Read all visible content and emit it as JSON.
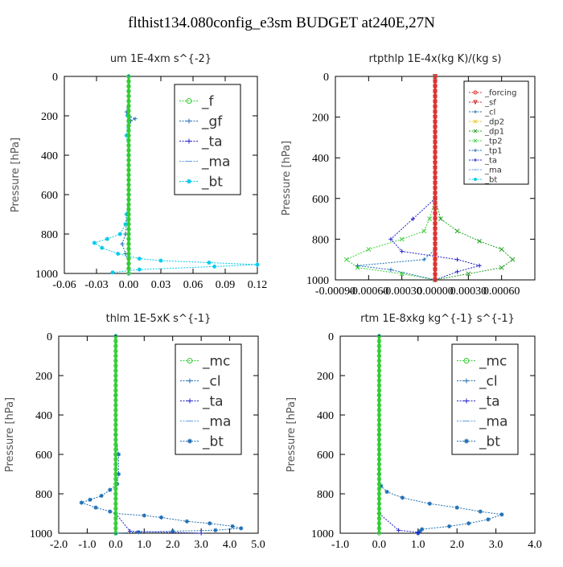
{
  "figure": {
    "title": "flthist134.080config_e3sm  BUDGET at240E,27N"
  },
  "chart_data": [
    {
      "type": "line",
      "title": "um  1E-4xm s^{-2}",
      "ylabel": "Pressure [hPa]",
      "xlim": [
        -0.06,
        0.12
      ],
      "ylim": [
        1000,
        0
      ],
      "xticks": [
        "-0.06",
        "-0.03",
        "0.00",
        "0.03",
        "0.06",
        "0.09",
        "0.12"
      ],
      "xtick_values": [
        -0.06,
        -0.03,
        0.0,
        0.03,
        0.06,
        0.09,
        0.12
      ],
      "yticks": [
        "0",
        "200",
        "400",
        "600",
        "800",
        "1000"
      ],
      "ytick_values": [
        0,
        200,
        400,
        600,
        800,
        1000
      ],
      "legend": {
        "position": "top-right",
        "size": "large",
        "entries": [
          "_f",
          "_gf",
          "_ta",
          "_ma",
          "_bt"
        ]
      },
      "series": [
        {
          "name": "_gf",
          "color": "#1f6fb4",
          "marker": "+",
          "points": [
            [
              0,
              0
            ],
            [
              0,
              100
            ],
            [
              -0.002,
              180
            ],
            [
              -0.001,
              195
            ],
            [
              0.001,
              205
            ],
            [
              0.006,
              215
            ],
            [
              0.002,
              225
            ],
            [
              0,
              300
            ],
            [
              0,
              400
            ],
            [
              0,
              600
            ],
            [
              -0.003,
              800
            ],
            [
              -0.006,
              850
            ],
            [
              -0.003,
              900
            ],
            [
              0,
              950
            ],
            [
              0,
              1000
            ]
          ]
        },
        {
          "name": "_bt",
          "color": "#00c8e8",
          "marker": "*",
          "points": [
            [
              0,
              0
            ],
            [
              0,
              100
            ],
            [
              -0.001,
              200
            ],
            [
              -0.002,
              300
            ],
            [
              0,
              400
            ],
            [
              0,
              500
            ],
            [
              0,
              600
            ],
            [
              -0.002,
              700
            ],
            [
              -0.003,
              750
            ],
            [
              -0.008,
              800
            ],
            [
              -0.02,
              825
            ],
            [
              -0.032,
              845
            ],
            [
              -0.025,
              870
            ],
            [
              -0.01,
              900
            ],
            [
              0.01,
              925
            ],
            [
              0.03,
              935
            ],
            [
              0.075,
              945
            ],
            [
              0.12,
              955
            ],
            [
              0.08,
              965
            ],
            [
              0.01,
              980
            ],
            [
              -0.015,
              995
            ]
          ]
        },
        {
          "name": "_ta",
          "color": "#2020c8",
          "marker": "+",
          "points": [
            [
              0,
              0
            ],
            [
              0,
              200
            ],
            [
              0,
              400
            ],
            [
              0,
              600
            ],
            [
              0,
              800
            ],
            [
              0,
              900
            ],
            [
              0,
              1000
            ]
          ]
        },
        {
          "name": "_ma",
          "color": "#60a0e0",
          "marker": "-",
          "points": [
            [
              0,
              0
            ],
            [
              0,
              500
            ],
            [
              0,
              1000
            ]
          ]
        },
        {
          "name": "_f",
          "color": "#32cd32",
          "marker": "o",
          "points": [
            [
              0,
              0
            ],
            [
              0,
              250
            ],
            [
              0,
              500
            ],
            [
              0,
              750
            ],
            [
              0,
              1000
            ]
          ]
        }
      ]
    },
    {
      "type": "line",
      "title": "rtpthlp  1E-4x(kg K)/(kg s)",
      "ylabel": "Pressure [hPa]",
      "xlim": [
        -0.0009,
        0.0009
      ],
      "ylim": [
        1000,
        0
      ],
      "xticks": [
        "-0.00090",
        "-0.00060",
        "-0.00030",
        "0.00000",
        "0.00030",
        "0.00060"
      ],
      "xtick_values": [
        -0.0009,
        -0.0006,
        -0.0003,
        0.0,
        0.0003,
        0.0006
      ],
      "yticks": [
        "0",
        "200",
        "400",
        "600",
        "800",
        "1000"
      ],
      "ytick_values": [
        0,
        200,
        400,
        600,
        800,
        1000
      ],
      "legend": {
        "position": "top-right",
        "size": "small",
        "entries": [
          "_forcing",
          "_sf",
          "_cl",
          "_dp2",
          "_dp1",
          "_tp2",
          "_tp1",
          "_ta",
          "_ma",
          "_bt"
        ]
      },
      "series": [
        {
          "name": "_dp1",
          "color": "#20a020",
          "marker": "x",
          "points": [
            [
              0,
              0
            ],
            [
              0,
              600
            ],
            [
              5e-05,
              700
            ],
            [
              0.0002,
              760
            ],
            [
              0.0004,
              810
            ],
            [
              0.0006,
              850
            ],
            [
              0.0007,
              900
            ],
            [
              0.0006,
              940
            ],
            [
              0.0003,
              970
            ],
            [
              0,
              1000
            ]
          ]
        },
        {
          "name": "_tp2",
          "color": "#40d040",
          "marker": "x",
          "points": [
            [
              0,
              0
            ],
            [
              0,
              600
            ],
            [
              -5e-05,
              700
            ],
            [
              -0.0001,
              760
            ],
            [
              -0.0003,
              800
            ],
            [
              -0.0006,
              850
            ],
            [
              -0.0008,
              900
            ],
            [
              -0.0007,
              940
            ],
            [
              -0.0003,
              970
            ],
            [
              0,
              1000
            ]
          ]
        },
        {
          "name": "_ta",
          "color": "#2020c8",
          "marker": "+",
          "points": [
            [
              0,
              600
            ],
            [
              -0.0002,
              700
            ],
            [
              -0.0004,
              800
            ],
            [
              -0.0003,
              860
            ],
            [
              0.0002,
              900
            ],
            [
              0.0004,
              930
            ],
            [
              0.0002,
              960
            ],
            [
              0,
              1000
            ]
          ]
        },
        {
          "name": "_tp1",
          "color": "#1f6fb4",
          "marker": "+",
          "points": [
            [
              0,
              0
            ],
            [
              0,
              850
            ],
            [
              -0.0001,
              900
            ],
            [
              -0.0007,
              930
            ],
            [
              -0.0004,
              950
            ],
            [
              0,
              1000
            ]
          ]
        },
        {
          "name": "_sf",
          "color": "#d02020",
          "marker": "v",
          "points": [
            [
              0,
              0
            ],
            [
              0,
              250
            ],
            [
              0,
              500
            ],
            [
              0,
              750
            ],
            [
              0,
              1000
            ]
          ]
        },
        {
          "name": "_forcing",
          "color": "#e03030",
          "marker": "o",
          "points": [
            [
              0,
              0
            ],
            [
              0,
              500
            ],
            [
              0,
              1000
            ]
          ]
        }
      ]
    },
    {
      "type": "line",
      "title": "thlm  1E-5xK s^{-1}",
      "ylabel": "Pressure [hPa]",
      "xlim": [
        -2.0,
        5.0
      ],
      "ylim": [
        1000,
        0
      ],
      "xticks": [
        "-2.0",
        "-1.0",
        "0.0",
        "1.0",
        "2.0",
        "3.0",
        "4.0",
        "5.0"
      ],
      "xtick_values": [
        -2,
        -1,
        0,
        1,
        2,
        3,
        4,
        5
      ],
      "yticks": [
        "0",
        "200",
        "400",
        "600",
        "800",
        "1000"
      ],
      "ytick_values": [
        0,
        200,
        400,
        600,
        800,
        1000
      ],
      "legend": {
        "position": "top-right",
        "size": "large",
        "entries": [
          "_mc",
          "_cl",
          "_ta",
          "_ma",
          "_bt"
        ]
      },
      "series": [
        {
          "name": "_bt",
          "color": "#1f6fb4",
          "marker": "*",
          "points": [
            [
              0,
              0
            ],
            [
              0,
              300
            ],
            [
              0,
              500
            ],
            [
              0.1,
              600
            ],
            [
              0.1,
              700
            ],
            [
              0.05,
              750
            ],
            [
              -0.2,
              780
            ],
            [
              -0.5,
              810
            ],
            [
              -0.9,
              830
            ],
            [
              -1.2,
              845
            ],
            [
              -0.7,
              870
            ],
            [
              -0.2,
              890
            ],
            [
              0,
              900
            ],
            [
              1.0,
              910
            ],
            [
              1.6,
              920
            ],
            [
              2.5,
              940
            ],
            [
              3.3,
              950
            ],
            [
              4.1,
              965
            ],
            [
              4.4,
              975
            ],
            [
              3.5,
              985
            ],
            [
              2.0,
              990
            ],
            [
              0.8,
              995
            ],
            [
              0,
              1000
            ]
          ]
        },
        {
          "name": "_ta",
          "color": "#2020c8",
          "marker": "+",
          "points": [
            [
              0,
              0
            ],
            [
              0,
              600
            ],
            [
              0,
              900
            ],
            [
              0.5,
              990
            ],
            [
              3.0,
              1000
            ]
          ]
        },
        {
          "name": "_mc",
          "color": "#32cd32",
          "marker": "o",
          "points": [
            [
              0,
              0
            ],
            [
              0,
              250
            ],
            [
              0,
              500
            ],
            [
              0,
              750
            ],
            [
              0,
              1000
            ]
          ]
        }
      ]
    },
    {
      "type": "line",
      "title": "rtm  1E-8xkg kg^{-1} s^{-1}",
      "ylabel": "Pressure [hPa]",
      "xlim": [
        -1.0,
        4.0
      ],
      "ylim": [
        1000,
        0
      ],
      "xticks": [
        "-1.0",
        "0.0",
        "1.0",
        "2.0",
        "3.0",
        "4.0"
      ],
      "xtick_values": [
        -1,
        0,
        1,
        2,
        3,
        4
      ],
      "yticks": [
        "0",
        "200",
        "400",
        "600",
        "800",
        "1000"
      ],
      "ytick_values": [
        0,
        200,
        400,
        600,
        800,
        1000
      ],
      "legend": {
        "position": "top-right",
        "size": "large",
        "entries": [
          "_mc",
          "_cl",
          "_ta",
          "_ma",
          "_bt"
        ]
      },
      "series": [
        {
          "name": "_bt",
          "color": "#1f6fb4",
          "marker": "*",
          "points": [
            [
              0,
              0
            ],
            [
              0,
              300
            ],
            [
              0,
              500
            ],
            [
              0,
              700
            ],
            [
              0.05,
              760
            ],
            [
              0.2,
              790
            ],
            [
              0.6,
              820
            ],
            [
              1.3,
              850
            ],
            [
              2.0,
              870
            ],
            [
              2.6,
              890
            ],
            [
              3.15,
              905
            ],
            [
              2.8,
              930
            ],
            [
              2.3,
              950
            ],
            [
              1.8,
              965
            ],
            [
              1.1,
              980
            ],
            [
              1.05,
              990
            ],
            [
              1.0,
              1000
            ]
          ]
        },
        {
          "name": "_ta",
          "color": "#2020c8",
          "marker": "+",
          "points": [
            [
              0,
              0
            ],
            [
              0,
              700
            ],
            [
              0,
              900
            ],
            [
              0.5,
              985
            ],
            [
              1.0,
              995
            ],
            [
              1.0,
              1000
            ]
          ]
        },
        {
          "name": "_mc",
          "color": "#32cd32",
          "marker": "o",
          "points": [
            [
              0,
              0
            ],
            [
              0,
              250
            ],
            [
              0,
              500
            ],
            [
              0,
              750
            ],
            [
              0,
              1000
            ]
          ]
        }
      ]
    }
  ]
}
